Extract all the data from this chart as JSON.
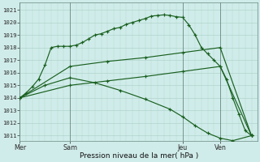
{
  "xlabel": "Pression niveau de la mer( hPa )",
  "ylim": [
    1010.6,
    1021.6
  ],
  "yticks": [
    1011,
    1012,
    1013,
    1014,
    1015,
    1016,
    1017,
    1018,
    1019,
    1020,
    1021
  ],
  "bg_color": "#d0ecea",
  "grid_color": "#b0d4cc",
  "line_color": "#1a6020",
  "day_positions": [
    0,
    8,
    26,
    32
  ],
  "day_labels": [
    "Mer",
    "Sam",
    "Jeu",
    "Ven"
  ],
  "xlim": [
    0,
    38
  ],
  "series1_x": [
    0,
    1,
    2,
    3,
    4,
    5,
    6,
    7,
    8,
    9,
    10,
    11,
    12,
    13,
    14,
    15,
    16,
    17,
    18,
    19,
    20,
    21,
    22,
    23,
    24,
    25,
    26,
    27,
    28,
    29,
    30,
    31,
    32,
    33,
    34,
    35,
    36,
    37
  ],
  "series1_y": [
    1014.0,
    1014.4,
    1014.9,
    1015.5,
    1016.6,
    1018.0,
    1018.1,
    1018.1,
    1018.1,
    1018.2,
    1018.4,
    1018.7,
    1019.0,
    1019.1,
    1019.3,
    1019.5,
    1019.6,
    1019.85,
    1020.0,
    1020.15,
    1020.3,
    1020.5,
    1020.55,
    1020.6,
    1020.55,
    1020.45,
    1020.4,
    1019.8,
    1019.0,
    1018.0,
    1017.5,
    1017.0,
    1016.5,
    1015.5,
    1014.0,
    1012.7,
    1011.4,
    1011.0
  ],
  "series2_x": [
    0,
    8,
    14,
    20,
    26,
    32,
    37
  ],
  "series2_y": [
    1014.0,
    1016.5,
    1016.9,
    1017.2,
    1017.6,
    1018.0,
    1011.0
  ],
  "series3_x": [
    0,
    8,
    14,
    20,
    26,
    32,
    37
  ],
  "series3_y": [
    1014.0,
    1015.0,
    1015.35,
    1015.7,
    1016.1,
    1016.5,
    1011.0
  ],
  "series4_x": [
    0,
    4,
    8,
    12,
    16,
    20,
    24,
    26,
    28,
    30,
    32,
    34,
    37
  ],
  "series4_y": [
    1014.0,
    1015.0,
    1015.6,
    1015.2,
    1014.6,
    1013.9,
    1013.1,
    1012.5,
    1011.8,
    1011.2,
    1010.8,
    1010.6,
    1011.0
  ]
}
